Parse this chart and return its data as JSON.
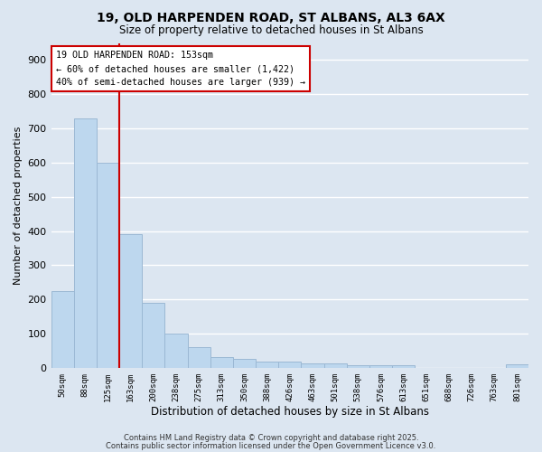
{
  "title_line1": "19, OLD HARPENDEN ROAD, ST ALBANS, AL3 6AX",
  "title_line2": "Size of property relative to detached houses in St Albans",
  "xlabel": "Distribution of detached houses by size in St Albans",
  "ylabel": "Number of detached properties",
  "bin_labels": [
    "50sqm",
    "88sqm",
    "125sqm",
    "163sqm",
    "200sqm",
    "238sqm",
    "275sqm",
    "313sqm",
    "350sqm",
    "388sqm",
    "426sqm",
    "463sqm",
    "501sqm",
    "538sqm",
    "576sqm",
    "613sqm",
    "651sqm",
    "688sqm",
    "726sqm",
    "763sqm",
    "801sqm"
  ],
  "bar_values": [
    225,
    730,
    600,
    390,
    190,
    100,
    60,
    30,
    25,
    18,
    18,
    12,
    12,
    8,
    8,
    8,
    0,
    0,
    0,
    0,
    10
  ],
  "bar_color": "#bdd7ee",
  "bar_edge_color": "#9bb8d4",
  "vline_x": 2.5,
  "vline_color": "#cc0000",
  "annotation_text": "19 OLD HARPENDEN ROAD: 153sqm\n← 60% of detached houses are smaller (1,422)\n40% of semi-detached houses are larger (939) →",
  "annotation_box_color": "#cc0000",
  "annotation_fill_color": "#ffffff",
  "ylim": [
    0,
    950
  ],
  "yticks": [
    0,
    100,
    200,
    300,
    400,
    500,
    600,
    700,
    800,
    900
  ],
  "bg_color": "#dce6f1",
  "grid_color": "#ffffff",
  "footer_line1": "Contains HM Land Registry data © Crown copyright and database right 2025.",
  "footer_line2": "Contains public sector information licensed under the Open Government Licence v3.0."
}
